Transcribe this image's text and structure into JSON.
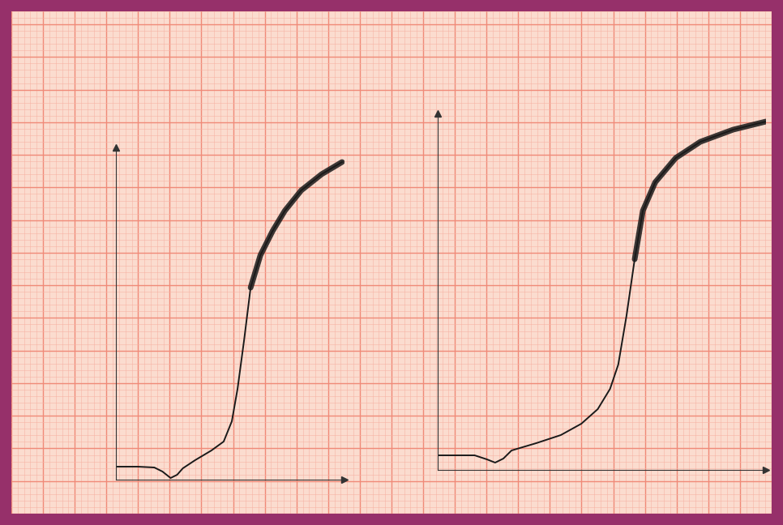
{
  "chart_data": [
    {
      "type": "line",
      "x": [
        0,
        2.7,
        4.7,
        5.7,
        6.7,
        7.5,
        8.2,
        9.7,
        11.7,
        13.2,
        14.2,
        14.9,
        15.7,
        16.5,
        17.7,
        19.2,
        20.7,
        22.7,
        25.2,
        27.7
      ],
      "values": [
        1.6,
        1.6,
        1.5,
        1.0,
        0.2,
        0.6,
        1.4,
        2.4,
        3.6,
        4.7,
        7.2,
        11.2,
        17.2,
        23.7,
        27.7,
        30.7,
        33.2,
        35.7,
        37.7,
        39.2
      ],
      "xlim": [
        0,
        28
      ],
      "ylim": [
        0,
        41
      ],
      "tick_labels": false,
      "color": "#1a1a1a"
    },
    {
      "type": "line",
      "x": [
        0,
        4.5,
        6,
        7,
        8,
        9,
        12,
        15,
        17.5,
        19.5,
        21,
        22,
        23,
        24,
        25,
        26.5,
        29,
        32,
        36,
        40
      ],
      "values": [
        1.8,
        1.8,
        1.3,
        0.9,
        1.4,
        2.4,
        3.3,
        4.3,
        5.7,
        7.5,
        10,
        13,
        19,
        26,
        32,
        35.5,
        38.5,
        40.5,
        42,
        43
      ],
      "xlim": [
        0,
        40
      ],
      "ylim": [
        0,
        44
      ],
      "tick_labels": false,
      "color": "#1a1a1a"
    }
  ]
}
